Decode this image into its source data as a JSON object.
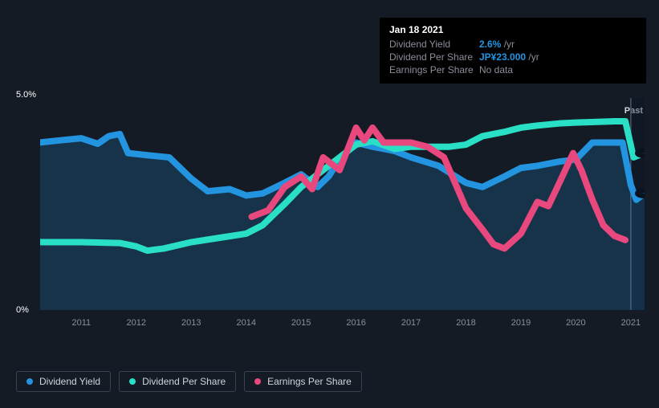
{
  "tooltip": {
    "date": "Jan 18 2021",
    "rows": [
      {
        "label": "Dividend Yield",
        "value": "2.6%",
        "unit": "/yr",
        "highlight": true,
        "nodata": false
      },
      {
        "label": "Dividend Per Share",
        "value": "JP¥23.000",
        "unit": "/yr",
        "highlight": true,
        "nodata": false
      },
      {
        "label": "Earnings Per Share",
        "value": "No data",
        "unit": "",
        "highlight": false,
        "nodata": true
      }
    ]
  },
  "chart": {
    "type": "line",
    "background_color": "#151b24",
    "plot_bg": "#1b2330",
    "ylim": [
      0,
      5.0
    ],
    "y_ticks": [
      {
        "v": 0,
        "label": "0%"
      },
      {
        "v": 5.0,
        "label": "5.0%"
      }
    ],
    "x_years": [
      2011,
      2012,
      2013,
      2014,
      2015,
      2016,
      2017,
      2018,
      2019,
      2020,
      2021
    ],
    "xlim": [
      2010.25,
      2021.25
    ],
    "past_label": "Past",
    "past_x": 2021,
    "series": [
      {
        "name": "Dividend Yield",
        "color": "#2394df",
        "fill": true,
        "fill_color": "rgba(35,148,223,0.20)",
        "stroke_width": 2.5,
        "points": [
          [
            2010.25,
            3.95
          ],
          [
            2010.6,
            4.0
          ],
          [
            2011.0,
            4.05
          ],
          [
            2011.3,
            3.92
          ],
          [
            2011.5,
            4.1
          ],
          [
            2011.7,
            4.15
          ],
          [
            2011.85,
            3.7
          ],
          [
            2012.2,
            3.65
          ],
          [
            2012.6,
            3.6
          ],
          [
            2013.0,
            3.1
          ],
          [
            2013.3,
            2.8
          ],
          [
            2013.7,
            2.85
          ],
          [
            2014.0,
            2.7
          ],
          [
            2014.3,
            2.75
          ],
          [
            2014.7,
            3.0
          ],
          [
            2015.0,
            3.2
          ],
          [
            2015.3,
            2.9
          ],
          [
            2015.5,
            3.15
          ],
          [
            2015.7,
            3.55
          ],
          [
            2016.0,
            3.95
          ],
          [
            2016.3,
            3.85
          ],
          [
            2016.7,
            3.75
          ],
          [
            2017.0,
            3.6
          ],
          [
            2017.5,
            3.4
          ],
          [
            2018.0,
            3.0
          ],
          [
            2018.3,
            2.9
          ],
          [
            2018.7,
            3.15
          ],
          [
            2019.0,
            3.35
          ],
          [
            2019.3,
            3.4
          ],
          [
            2019.7,
            3.5
          ],
          [
            2020.0,
            3.55
          ],
          [
            2020.3,
            3.95
          ],
          [
            2020.6,
            3.95
          ],
          [
            2020.85,
            3.95
          ],
          [
            2021.0,
            2.95
          ],
          [
            2021.1,
            2.6
          ],
          [
            2021.25,
            2.75
          ]
        ]
      },
      {
        "name": "Dividend Per Share",
        "color": "#29e0c6",
        "fill": false,
        "stroke_width": 2.5,
        "points": [
          [
            2010.25,
            1.6
          ],
          [
            2011.0,
            1.6
          ],
          [
            2011.7,
            1.58
          ],
          [
            2012.0,
            1.5
          ],
          [
            2012.2,
            1.4
          ],
          [
            2012.5,
            1.45
          ],
          [
            2013.0,
            1.6
          ],
          [
            2013.5,
            1.7
          ],
          [
            2014.0,
            1.8
          ],
          [
            2014.3,
            2.0
          ],
          [
            2014.7,
            2.5
          ],
          [
            2015.0,
            2.9
          ],
          [
            2015.3,
            3.2
          ],
          [
            2015.7,
            3.6
          ],
          [
            2016.0,
            3.9
          ],
          [
            2016.3,
            3.98
          ],
          [
            2016.7,
            3.8
          ],
          [
            2017.0,
            3.85
          ],
          [
            2017.7,
            3.85
          ],
          [
            2018.0,
            3.9
          ],
          [
            2018.3,
            4.1
          ],
          [
            2018.7,
            4.2
          ],
          [
            2019.0,
            4.3
          ],
          [
            2019.3,
            4.35
          ],
          [
            2019.7,
            4.4
          ],
          [
            2020.0,
            4.42
          ],
          [
            2020.7,
            4.45
          ],
          [
            2020.9,
            4.45
          ],
          [
            2021.05,
            3.6
          ],
          [
            2021.25,
            3.7
          ]
        ]
      },
      {
        "name": "Earnings Per Share",
        "color": "#e9487f",
        "fill": false,
        "stroke_width": 2.5,
        "points": [
          [
            2014.1,
            2.2
          ],
          [
            2014.4,
            2.35
          ],
          [
            2014.7,
            2.9
          ],
          [
            2015.0,
            3.15
          ],
          [
            2015.2,
            2.85
          ],
          [
            2015.4,
            3.6
          ],
          [
            2015.7,
            3.3
          ],
          [
            2016.0,
            4.3
          ],
          [
            2016.15,
            4.0
          ],
          [
            2016.3,
            4.3
          ],
          [
            2016.5,
            3.95
          ],
          [
            2016.8,
            3.95
          ],
          [
            2017.0,
            3.95
          ],
          [
            2017.3,
            3.85
          ],
          [
            2017.6,
            3.6
          ],
          [
            2017.8,
            3.0
          ],
          [
            2018.0,
            2.4
          ],
          [
            2018.3,
            1.9
          ],
          [
            2018.5,
            1.55
          ],
          [
            2018.7,
            1.45
          ],
          [
            2019.0,
            1.8
          ],
          [
            2019.3,
            2.55
          ],
          [
            2019.5,
            2.45
          ],
          [
            2019.7,
            3.0
          ],
          [
            2019.95,
            3.7
          ],
          [
            2020.1,
            3.3
          ],
          [
            2020.3,
            2.6
          ],
          [
            2020.5,
            2.0
          ],
          [
            2020.7,
            1.75
          ],
          [
            2020.9,
            1.65
          ]
        ]
      }
    ]
  },
  "legend": [
    {
      "label": "Dividend Yield",
      "color": "#2394df"
    },
    {
      "label": "Dividend Per Share",
      "color": "#29e0c6"
    },
    {
      "label": "Earnings Per Share",
      "color": "#e9487f"
    }
  ]
}
